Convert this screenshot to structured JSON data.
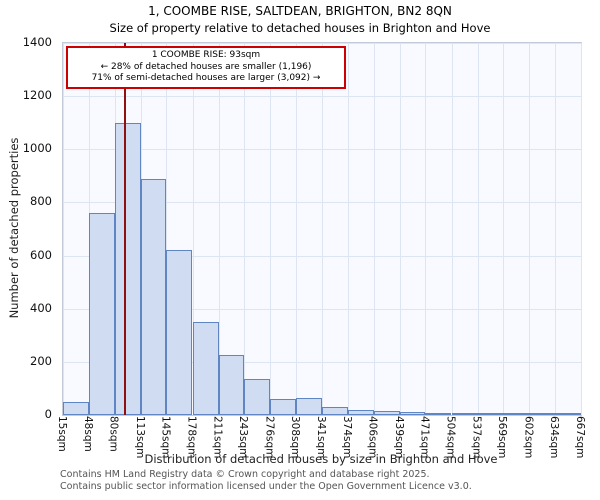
{
  "chart_data": {
    "type": "bar",
    "title": "1, COOMBE RISE, SALTDEAN, BRIGHTON, BN2 8QN",
    "subtitle": "Size of property relative to detached houses in Brighton and Hove",
    "xlabel": "Distribution of detached houses by size in Brighton and Hove",
    "ylabel": "Number of detached properties",
    "ylim": [
      0,
      1400
    ],
    "y_ticks": [
      0,
      200,
      400,
      600,
      800,
      1000,
      1200,
      1400
    ],
    "x_min": 15,
    "x_max": 667,
    "bin_edges": [
      15,
      48,
      80,
      113,
      145,
      178,
      211,
      243,
      276,
      308,
      341,
      374,
      406,
      439,
      471,
      504,
      537,
      569,
      602,
      634,
      667
    ],
    "bin_labels": [
      "15sqm",
      "48sqm",
      "80sqm",
      "113sqm",
      "145sqm",
      "178sqm",
      "211sqm",
      "243sqm",
      "276sqm",
      "308sqm",
      "341sqm",
      "374sqm",
      "406sqm",
      "439sqm",
      "471sqm",
      "504sqm",
      "537sqm",
      "569sqm",
      "602sqm",
      "634sqm",
      "667sqm"
    ],
    "values": [
      50,
      760,
      1100,
      890,
      620,
      350,
      225,
      135,
      60,
      65,
      30,
      20,
      15,
      10,
      5,
      2,
      5,
      0,
      0,
      8
    ],
    "grid": true,
    "bar_fill": "#cfdcf1",
    "bar_border": "#5f86c3",
    "marker": {
      "value": 93,
      "color": "#8f1010"
    },
    "annotation": {
      "line1": "1 COOMBE RISE: 93sqm",
      "line2": "← 28% of detached houses are smaller (1,196)",
      "line3": "71% of semi-detached houses are larger (3,092) →"
    }
  },
  "footer": {
    "line1": "Contains HM Land Registry data © Crown copyright and database right 2025.",
    "line2": "Contains public sector information licensed under the Open Government Licence v3.0."
  }
}
